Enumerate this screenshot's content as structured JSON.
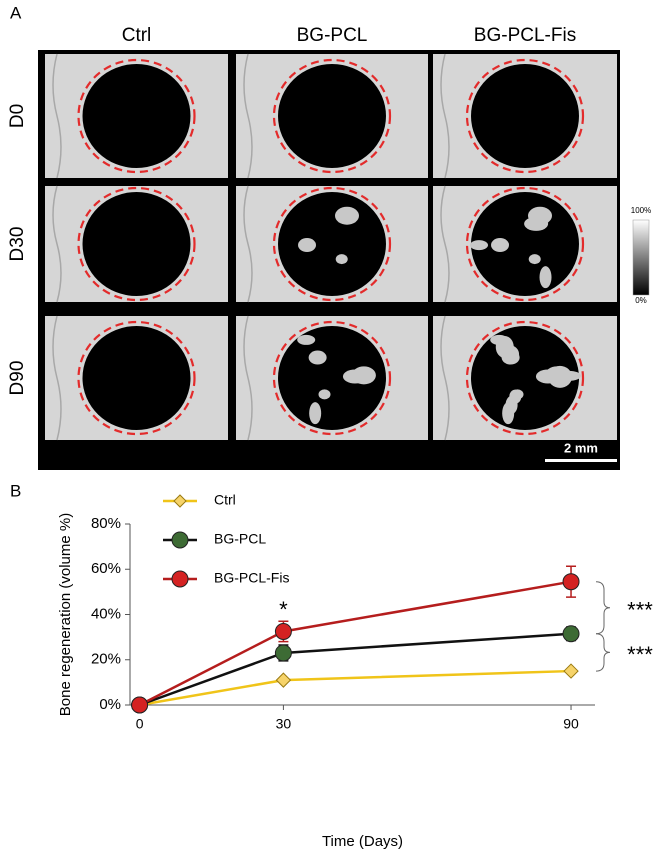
{
  "panels": {
    "a": "A",
    "b": "B"
  },
  "image_grid": {
    "columns": [
      "Ctrl",
      "BG-PCL",
      "BG-PCL-Fis"
    ],
    "rows": [
      "D0",
      "D30",
      "D90"
    ],
    "colorbar": {
      "max": "100%",
      "min": "0%"
    },
    "scale_bar": "2 mm"
  },
  "chart_data": {
    "type": "line",
    "x_label": "Time (Days)",
    "y_label": "Bone regeneration (volume %)",
    "x": [
      0,
      30,
      90
    ],
    "xlim": [
      -2,
      95
    ],
    "xticks": [
      0,
      30,
      90
    ],
    "ylim": [
      0,
      80
    ],
    "yticks": [
      {
        "value": 0,
        "label": "0%"
      },
      {
        "value": 20,
        "label": "20%"
      },
      {
        "value": 40,
        "label": "40%"
      },
      {
        "value": 60,
        "label": "60%"
      },
      {
        "value": 80,
        "label": "80%"
      }
    ],
    "legend": "top-left",
    "series": [
      {
        "name": "Ctrl",
        "color": "#f0c419",
        "marker": "diamond",
        "marker_color": "#f6d36a",
        "values": [
          0,
          11,
          15
        ],
        "errors": [
          0,
          0.5,
          0.5
        ]
      },
      {
        "name": "BG-PCL",
        "color": "#111111",
        "marker": "circle",
        "marker_color": "#3d6b34",
        "values": [
          0,
          23,
          31.5
        ],
        "errors": [
          0,
          3.5,
          3
        ]
      },
      {
        "name": "BG-PCL-Fis",
        "color": "#b51d1d",
        "marker": "circle",
        "marker_color": "#d42222",
        "values": [
          0,
          32.5,
          54.5
        ],
        "errors": [
          0,
          4.5,
          6.8
        ]
      }
    ],
    "annotations": [
      "*",
      "***",
      "***"
    ]
  }
}
